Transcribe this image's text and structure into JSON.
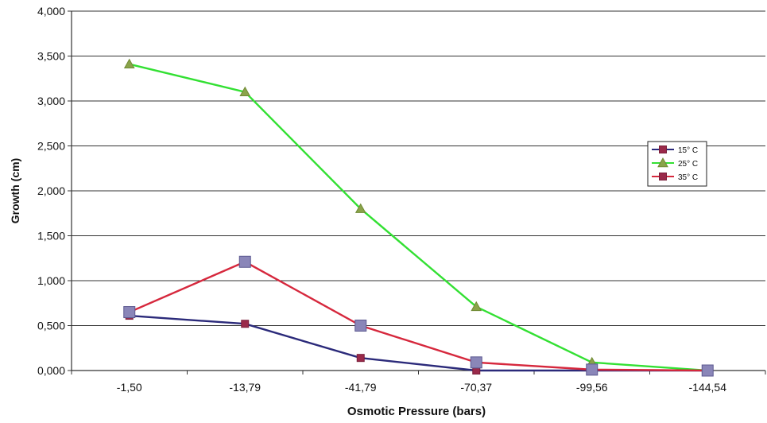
{
  "chart_data": {
    "type": "line",
    "xlabel": "Osmotic Pressure (bars)",
    "ylabel": "Growth (cm)",
    "categories": [
      "-1,50",
      "-13,79",
      "-41,79",
      "-70,37",
      "-99,56",
      "-144,54"
    ],
    "ylim": [
      0,
      4
    ],
    "yticks": [
      0,
      0.5,
      1,
      1.5,
      2,
      2.5,
      3,
      3.5,
      4
    ],
    "ytick_labels": [
      "0,000",
      "0,500",
      "1,000",
      "1,500",
      "2,000",
      "2,500",
      "3,000",
      "3,500",
      "4,000"
    ],
    "grid": true,
    "legend_position": "right",
    "series": [
      {
        "name": "15° C",
        "color": "#2b2a7a",
        "marker": "square",
        "values": [
          0.61,
          0.52,
          0.14,
          0.0,
          0.0,
          0.0
        ]
      },
      {
        "name": "25° C",
        "color": "#33e033",
        "marker": "triangle",
        "values": [
          3.41,
          3.1,
          1.8,
          0.71,
          0.09,
          0.0
        ]
      },
      {
        "name": "35° C",
        "color": "#d6283d",
        "marker": "square-large",
        "values": [
          0.65,
          1.21,
          0.5,
          0.09,
          0.01,
          0.0
        ]
      }
    ]
  }
}
